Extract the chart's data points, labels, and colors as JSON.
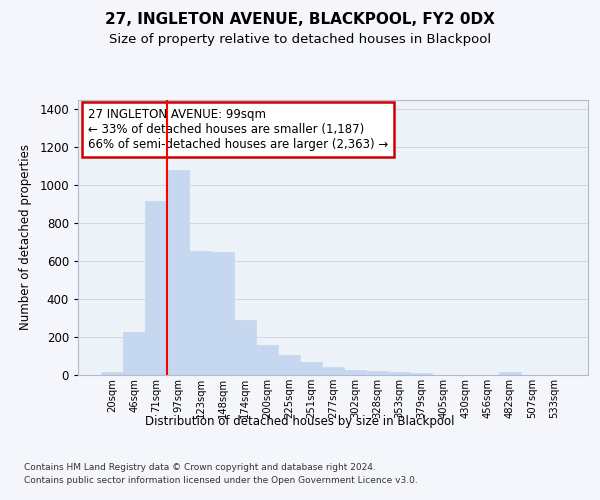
{
  "title": "27, INGLETON AVENUE, BLACKPOOL, FY2 0DX",
  "subtitle": "Size of property relative to detached houses in Blackpool",
  "xlabel": "Distribution of detached houses by size in Blackpool",
  "ylabel": "Number of detached properties",
  "categories": [
    "20sqm",
    "46sqm",
    "71sqm",
    "97sqm",
    "123sqm",
    "148sqm",
    "174sqm",
    "200sqm",
    "225sqm",
    "251sqm",
    "277sqm",
    "302sqm",
    "328sqm",
    "353sqm",
    "379sqm",
    "405sqm",
    "430sqm",
    "456sqm",
    "482sqm",
    "507sqm",
    "533sqm"
  ],
  "values": [
    15,
    228,
    920,
    1080,
    655,
    650,
    290,
    160,
    107,
    68,
    40,
    25,
    22,
    18,
    10,
    0,
    0,
    0,
    18,
    0,
    0
  ],
  "bar_color": "#c5d8f0",
  "bar_edge_color": "#c5d8f0",
  "red_line_bin": 3,
  "ylim": [
    0,
    1450
  ],
  "yticks": [
    0,
    200,
    400,
    600,
    800,
    1000,
    1200,
    1400
  ],
  "annotation_text": "27 INGLETON AVENUE: 99sqm\n← 33% of detached houses are smaller (1,187)\n66% of semi-detached houses are larger (2,363) →",
  "annotation_box_facecolor": "#ffffff",
  "annotation_box_edgecolor": "#cc0000",
  "footer_line1": "Contains HM Land Registry data © Crown copyright and database right 2024.",
  "footer_line2": "Contains public sector information licensed under the Open Government Licence v3.0.",
  "bg_color": "#f4f6fb",
  "plot_bg_color": "#edf1f8",
  "grid_color": "#d0d8e8",
  "title_fontsize": 11,
  "subtitle_fontsize": 9.5
}
